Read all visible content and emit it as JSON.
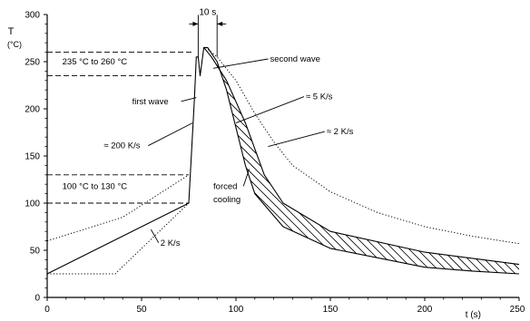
{
  "chart_data": {
    "type": "line",
    "title": "",
    "xlabel": "t (s)",
    "ylabel": "T",
    "ylabel_unit": "(°C)",
    "xlim": [
      0,
      250
    ],
    "ylim": [
      0,
      300
    ],
    "xticks": [
      0,
      50,
      100,
      150,
      200,
      250
    ],
    "yticks": [
      0,
      50,
      100,
      150,
      200,
      250,
      300
    ],
    "grid": false,
    "legend": "none",
    "series": [
      {
        "style": "solid",
        "points": [
          [
            0,
            25
          ],
          [
            75,
            100
          ],
          [
            78,
            210
          ],
          [
            79,
            255
          ],
          [
            80,
            255
          ],
          [
            81,
            235
          ],
          [
            83,
            265
          ],
          [
            85,
            265
          ],
          [
            90,
            250
          ],
          [
            95,
            220
          ],
          [
            100,
            180
          ],
          [
            105,
            140
          ],
          [
            110,
            110
          ],
          [
            125,
            75
          ],
          [
            150,
            52
          ],
          [
            200,
            32
          ],
          [
            225,
            28
          ],
          [
            250,
            25
          ]
        ]
      },
      {
        "style": "solid-steep",
        "points": [
          [
            83,
            265
          ],
          [
            87,
            255
          ],
          [
            95,
            230
          ],
          [
            105,
            185
          ],
          [
            115,
            130
          ],
          [
            125,
            100
          ],
          [
            150,
            70
          ],
          [
            200,
            48
          ],
          [
            250,
            35
          ]
        ]
      },
      {
        "style": "dotted-preheat-low",
        "points": [
          [
            0,
            25
          ],
          [
            36,
            25
          ],
          [
            75,
            100
          ]
        ]
      },
      {
        "style": "dotted-preheat-high",
        "points": [
          [
            0,
            60
          ],
          [
            40,
            85
          ],
          [
            75,
            130
          ]
        ]
      },
      {
        "style": "dotted-slow",
        "points": [
          [
            84,
            265
          ],
          [
            90,
            255
          ],
          [
            100,
            230
          ],
          [
            110,
            195
          ],
          [
            120,
            165
          ],
          [
            130,
            140
          ],
          [
            150,
            112
          ],
          [
            175,
            90
          ],
          [
            200,
            75
          ],
          [
            225,
            65
          ],
          [
            250,
            57
          ]
        ]
      }
    ],
    "reference_lines": [
      {
        "y": 260,
        "x_end": 77
      },
      {
        "y": 235,
        "x_end": 77
      },
      {
        "y": 130,
        "x_end": 75
      },
      {
        "y": 100,
        "x_end": 75
      }
    ],
    "dimension": {
      "label": "10 s",
      "x_from": 80,
      "x_to": 90,
      "y": 290
    },
    "annotations": [
      {
        "id": "range_high",
        "text": "235 °C  to  260 °C",
        "x": 8,
        "y": 247
      },
      {
        "id": "range_low",
        "text": "100 °C  to  130 °C",
        "x": 8,
        "y": 115
      },
      {
        "id": "first_wave",
        "text": "first wave",
        "x": 45,
        "y": 205,
        "arrow_to": [
          79,
          212
        ]
      },
      {
        "id": "second_wave",
        "text": "second wave",
        "x": 118,
        "y": 250,
        "arrow_to": [
          88,
          243
        ]
      },
      {
        "id": "rate_200",
        "text": "≈ 200 K/s",
        "x": 30,
        "y": 158,
        "arrow_to": [
          77,
          185
        ]
      },
      {
        "id": "rate_5",
        "text": "≈ 5 K/s",
        "x": 137,
        "y": 210,
        "arrow_to": [
          100,
          185
        ]
      },
      {
        "id": "rate_2_high",
        "text": "≈ 2 K/s",
        "x": 148,
        "y": 173,
        "arrow_to": [
          117,
          160
        ]
      },
      {
        "id": "rate_2_low",
        "text": "2 K/s",
        "x": 60,
        "y": 55,
        "arrow_to": [
          55,
          72
        ]
      },
      {
        "id": "forced_1",
        "text": "forced",
        "x": 88,
        "y": 115,
        "arrow_to": [
          107,
          136
        ]
      },
      {
        "id": "forced_2",
        "text": "cooling",
        "x": 88,
        "y": 101
      }
    ]
  }
}
